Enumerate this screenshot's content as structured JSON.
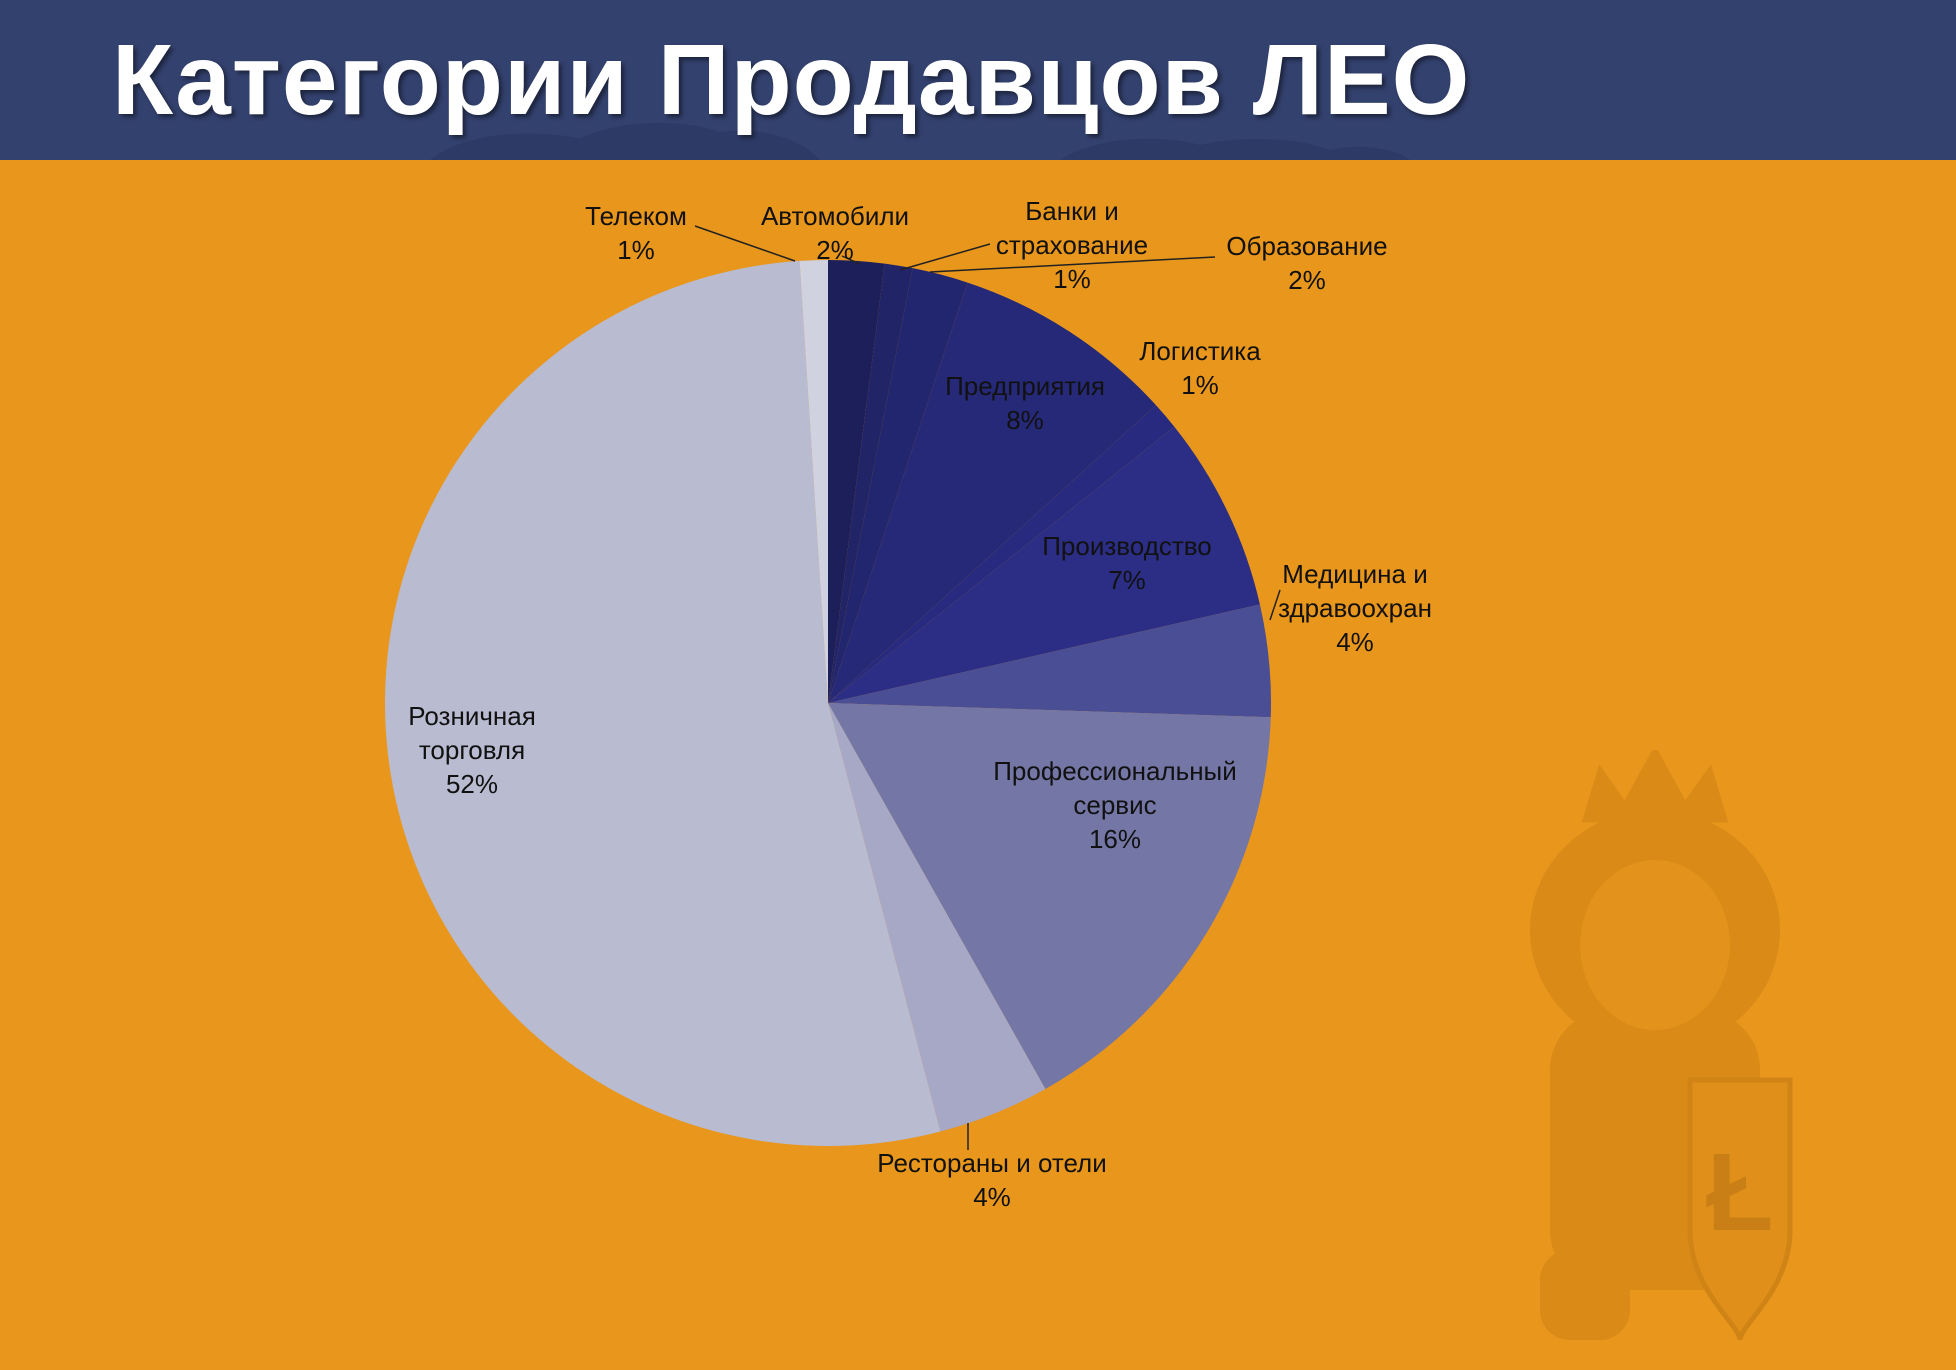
{
  "slide": {
    "title": "Категории Продавцов ЛЕО"
  },
  "colors": {
    "header_bg": "#33416e",
    "background": "#e8961c",
    "title_text": "#ffffff",
    "label_text": "#111111"
  },
  "chart_data": {
    "type": "pie",
    "title": "",
    "start_angle_deg": 0,
    "direction": "clockwise",
    "categories": [
      "Автомобили",
      "Банки и страхование",
      "Образование",
      "Предприятия",
      "Логистика",
      "Производство",
      "Медицина и здравоохран",
      "Профессиональный сервис",
      "Рестораны и отели",
      "Розничная торговля",
      "Телеком"
    ],
    "values": [
      2,
      1,
      2,
      8,
      1,
      7,
      4,
      16,
      4,
      52,
      1
    ],
    "value_labels": [
      "2%",
      "1%",
      "2%",
      "8%",
      "1%",
      "7%",
      "4%",
      "16%",
      "4%",
      "52%",
      "1%"
    ],
    "label_lines": [
      [
        "Автомобили",
        "2%"
      ],
      [
        "Банки и",
        "страхование",
        "1%"
      ],
      [
        "Образование",
        "2%"
      ],
      [
        "Предприятия",
        "8%"
      ],
      [
        "Логистика",
        "1%"
      ],
      [
        "Производство",
        "7%"
      ],
      [
        "Медицина и",
        "здравоохран",
        "4%"
      ],
      [
        "Профессиональный",
        "сервис",
        "16%"
      ],
      [
        "Рестораны и отели",
        "4%"
      ],
      [
        "Розничная",
        "торговля",
        "52%"
      ],
      [
        "Телеком",
        "1%"
      ]
    ],
    "slice_colors": [
      "#1c1f5a",
      "#212466",
      "#22266e",
      "#252977",
      "#272a7e",
      "#2b2e84",
      "#4a4e94",
      "#7476a6",
      "#a6a8c6",
      "#b9bbd0",
      "#d1d2e0"
    ],
    "legend": "none",
    "data_labels": "outside-or-inside"
  }
}
